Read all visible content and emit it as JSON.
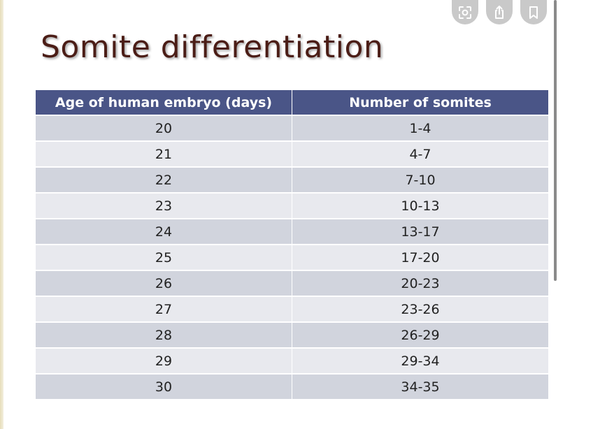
{
  "slide": {
    "title": "Somite differentiation"
  },
  "table": {
    "headers": [
      "Age of human embryo (days)",
      "Number of somites"
    ],
    "rows": [
      [
        "20",
        "1-4"
      ],
      [
        "21",
        "4-7"
      ],
      [
        "22",
        "7-10"
      ],
      [
        "23",
        "10-13"
      ],
      [
        "24",
        "13-17"
      ],
      [
        "25",
        "17-20"
      ],
      [
        "26",
        "20-23"
      ],
      [
        "27",
        "23-26"
      ],
      [
        "28",
        "26-29"
      ],
      [
        "29",
        "29-34"
      ],
      [
        "30",
        "34-35"
      ]
    ]
  },
  "overlay_buttons": [
    {
      "icon": "lens-search-icon"
    },
    {
      "icon": "share-icon"
    },
    {
      "icon": "bookmark-icon"
    }
  ],
  "colors": {
    "title": "#4b1d16",
    "header_bg": "#4a5587",
    "row_dark": "#d1d4dd",
    "row_light": "#e8e9ee",
    "overlay_button": "#c9c9c9"
  }
}
